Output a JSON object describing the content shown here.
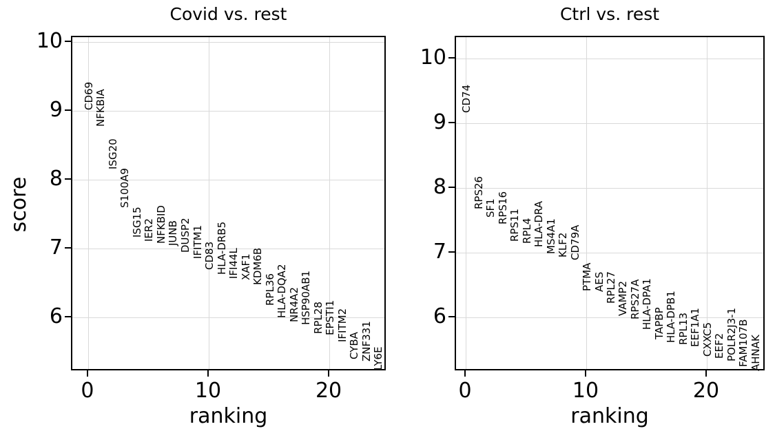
{
  "figure": {
    "background_color": "#ffffff",
    "grid_color": "#d9d9d9",
    "spine_color": "#000000",
    "text_color": "#000000"
  },
  "chart_data": [
    {
      "type": "scatter",
      "title": "Covid vs. rest",
      "xlabel": "ranking",
      "ylabel": "score",
      "grid": true,
      "annotation_style": "vertical-gene-labels",
      "xlim": [
        -1.37,
        24.74
      ],
      "ylim": [
        5.22,
        10.08
      ],
      "xticks": [
        0,
        10,
        20
      ],
      "yticks": [
        6,
        7,
        8,
        9,
        10
      ],
      "points": [
        {
          "ranking": 0,
          "gene": "CD69",
          "score": 9.02
        },
        {
          "ranking": 1,
          "gene": "NFKBIA",
          "score": 8.78
        },
        {
          "ranking": 2,
          "gene": "ISG20",
          "score": 8.16
        },
        {
          "ranking": 3,
          "gene": "S100A9",
          "score": 7.6
        },
        {
          "ranking": 4,
          "gene": "ISG15",
          "score": 7.17
        },
        {
          "ranking": 5,
          "gene": "IER2",
          "score": 7.11
        },
        {
          "ranking": 6,
          "gene": "NFKBID",
          "score": 7.08
        },
        {
          "ranking": 7,
          "gene": "JUNB",
          "score": 7.05
        },
        {
          "ranking": 8,
          "gene": "DUSP2",
          "score": 6.95
        },
        {
          "ranking": 9,
          "gene": "IFITM1",
          "score": 6.86
        },
        {
          "ranking": 10,
          "gene": "CD83",
          "score": 6.7
        },
        {
          "ranking": 11,
          "gene": "HLA-DRB5",
          "score": 6.63
        },
        {
          "ranking": 12,
          "gene": "IFI44L",
          "score": 6.57
        },
        {
          "ranking": 13,
          "gene": "XAF1",
          "score": 6.55
        },
        {
          "ranking": 14,
          "gene": "KDM6B",
          "score": 6.48
        },
        {
          "ranking": 15,
          "gene": "RPL36",
          "score": 6.18
        },
        {
          "ranking": 16,
          "gene": "HLA-DQA2",
          "score": 6.0
        },
        {
          "ranking": 17,
          "gene": "NR4A2",
          "score": 5.94
        },
        {
          "ranking": 18,
          "gene": "HSP90AB1",
          "score": 5.9
        },
        {
          "ranking": 19,
          "gene": "RPL28",
          "score": 5.77
        },
        {
          "ranking": 20,
          "gene": "EPSTI1",
          "score": 5.75
        },
        {
          "ranking": 21,
          "gene": "IFITM2",
          "score": 5.65
        },
        {
          "ranking": 22,
          "gene": "CYBA",
          "score": 5.4
        },
        {
          "ranking": 23,
          "gene": "ZNF331",
          "score": 5.37
        },
        {
          "ranking": 24,
          "gene": "LY6E",
          "score": 5.24
        }
      ]
    },
    {
      "type": "scatter",
      "title": "Ctrl vs. rest",
      "xlabel": "ranking",
      "ylabel": "score",
      "grid": true,
      "annotation_style": "vertical-gene-labels",
      "xlim": [
        -0.86,
        24.86
      ],
      "ylim": [
        5.17,
        10.34
      ],
      "xticks": [
        0,
        10,
        20
      ],
      "yticks": [
        6,
        7,
        8,
        9,
        10
      ],
      "points": [
        {
          "ranking": 0,
          "gene": "CD74",
          "score": 9.17
        },
        {
          "ranking": 1,
          "gene": "RPS26",
          "score": 7.68
        },
        {
          "ranking": 2,
          "gene": "SF1",
          "score": 7.55
        },
        {
          "ranking": 3,
          "gene": "RPS16",
          "score": 7.45
        },
        {
          "ranking": 4,
          "gene": "RPS11",
          "score": 7.18
        },
        {
          "ranking": 5,
          "gene": "RPL4",
          "score": 7.15
        },
        {
          "ranking": 6,
          "gene": "HLA-DRA",
          "score": 7.1
        },
        {
          "ranking": 7,
          "gene": "MS4A1",
          "score": 6.99
        },
        {
          "ranking": 8,
          "gene": "KLF2",
          "score": 6.94
        },
        {
          "ranking": 9,
          "gene": "CD79A",
          "score": 6.89
        },
        {
          "ranking": 10,
          "gene": "PTMA",
          "score": 6.41
        },
        {
          "ranking": 11,
          "gene": "AES",
          "score": 6.4
        },
        {
          "ranking": 12,
          "gene": "RPL27",
          "score": 6.22
        },
        {
          "ranking": 13,
          "gene": "VAMP2",
          "score": 6.03
        },
        {
          "ranking": 14,
          "gene": "RPS27A",
          "score": 5.98
        },
        {
          "ranking": 15,
          "gene": "HLA-DPA1",
          "score": 5.82
        },
        {
          "ranking": 16,
          "gene": "TAPBP",
          "score": 5.67
        },
        {
          "ranking": 17,
          "gene": "HLA-DPB1",
          "score": 5.62
        },
        {
          "ranking": 18,
          "gene": "RPL13",
          "score": 5.59
        },
        {
          "ranking": 19,
          "gene": "EEF1A1",
          "score": 5.55
        },
        {
          "ranking": 20,
          "gene": "CXXC5",
          "score": 5.4
        },
        {
          "ranking": 21,
          "gene": "EEF2",
          "score": 5.37
        },
        {
          "ranking": 22,
          "gene": "POLR2J3-1",
          "score": 5.33
        },
        {
          "ranking": 23,
          "gene": "FAM107B",
          "score": 5.24
        },
        {
          "ranking": 24,
          "gene": "AHNAK",
          "score": 5.18
        }
      ]
    }
  ]
}
